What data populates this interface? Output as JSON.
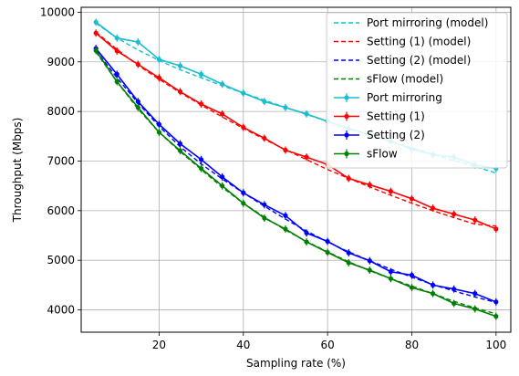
{
  "chart_data": {
    "type": "line",
    "xlabel": "Sampling rate (%)",
    "ylabel": "Throughput (Mbps)",
    "xlim": [
      1.5,
      103.5
    ],
    "ylim": [
      3550,
      10100
    ],
    "xticks": [
      20,
      40,
      60,
      80,
      100
    ],
    "yticks": [
      4000,
      5000,
      6000,
      7000,
      8000,
      9000,
      10000
    ],
    "grid": true,
    "legend_position": "top-right",
    "x": [
      5,
      10,
      15,
      20,
      25,
      30,
      35,
      40,
      45,
      50,
      55,
      60,
      65,
      70,
      75,
      80,
      85,
      90,
      95,
      100
    ],
    "series": [
      {
        "name": "Port mirroring (model)",
        "kind": "model",
        "color": "#17becf",
        "values": [
          9780,
          9480,
          9240,
          9030,
          8840,
          8680,
          8520,
          8370,
          8230,
          8080,
          7940,
          7800,
          7660,
          7530,
          7400,
          7270,
          7140,
          7010,
          6890,
          6760
        ]
      },
      {
        "name": "Setting (1) (model)",
        "kind": "model",
        "color": "#ff0000",
        "values": [
          9600,
          9250,
          8930,
          8650,
          8380,
          8130,
          7890,
          7660,
          7440,
          7230,
          7030,
          6830,
          6650,
          6480,
          6310,
          6150,
          6000,
          5860,
          5730,
          5690
        ]
      },
      {
        "name": "Setting (2) (model)",
        "kind": "model",
        "color": "#0000ff",
        "values": [
          9230,
          8680,
          8170,
          7700,
          7290,
          6940,
          6640,
          6360,
          6090,
          5830,
          5590,
          5370,
          5170,
          4990,
          4820,
          4660,
          4510,
          4380,
          4260,
          4150
        ]
      },
      {
        "name": "sFlow (model)",
        "kind": "model",
        "color": "#008000",
        "values": [
          9200,
          8600,
          8050,
          7580,
          7190,
          6830,
          6470,
          6150,
          5870,
          5610,
          5380,
          5170,
          4970,
          4790,
          4630,
          4480,
          4330,
          4170,
          4040,
          3920
        ]
      },
      {
        "name": "Port mirroring",
        "kind": "measured",
        "color": "#17becf",
        "values": [
          9800,
          9480,
          9400,
          9050,
          8920,
          8750,
          8550,
          8370,
          8200,
          8080,
          7950,
          7800,
          7650,
          7530,
          7400,
          7240,
          7130,
          7080,
          6920,
          6850
        ]
      },
      {
        "name": "Setting (1)",
        "kind": "measured",
        "color": "#ff0000",
        "values": [
          9580,
          9220,
          8950,
          8680,
          8400,
          8150,
          7950,
          7680,
          7460,
          7220,
          7080,
          6930,
          6650,
          6520,
          6390,
          6240,
          6050,
          5930,
          5810,
          5630
        ]
      },
      {
        "name": "Setting (2)",
        "kind": "measured",
        "color": "#0000ff",
        "values": [
          9270,
          8750,
          8200,
          7740,
          7350,
          7030,
          6680,
          6360,
          6120,
          5900,
          5550,
          5380,
          5150,
          4990,
          4770,
          4700,
          4500,
          4420,
          4330,
          4160
        ]
      },
      {
        "name": "sFlow",
        "kind": "measured",
        "color": "#008000",
        "values": [
          9230,
          8600,
          8080,
          7580,
          7210,
          6850,
          6500,
          6150,
          5850,
          5630,
          5370,
          5160,
          4950,
          4800,
          4630,
          4450,
          4330,
          4130,
          4020,
          3870
        ]
      }
    ]
  }
}
